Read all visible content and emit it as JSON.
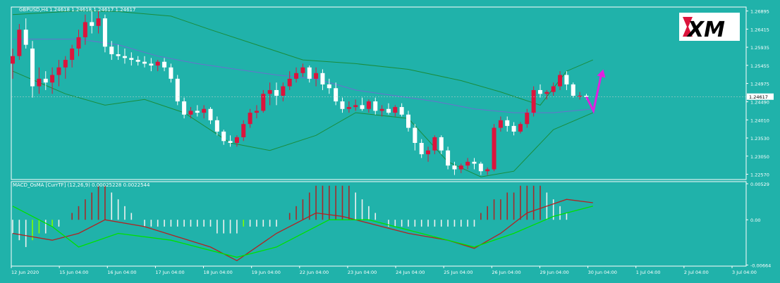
{
  "colors": {
    "background": "#20b2aa",
    "frame": "#ffffff",
    "bull_candle": "#dc143c",
    "bear_candle": "#ffffff",
    "bollinger": "#1a8c3c",
    "ma": "#6a6fcf",
    "hist_pos_up": "#a52a2a",
    "hist_pos_down": "#f0f0f0",
    "hist_neg_up": "#7fff00",
    "hist_neg_down": "#f0f0f0",
    "macd_line": "#b22222",
    "signal_line": "#00e000",
    "arrow": "#e020e0",
    "text": "#ffffff"
  },
  "header": {
    "symbol": "GBPUSD,H4",
    "ohlc": "1.24618 1.24618 1.24617 1.24617",
    "indicator": "MACD_OsMA [CurrTF] (12,26,9) 0.00025228 0.0022544"
  },
  "logo": {
    "text": "XM",
    "icon": "xm-logo"
  },
  "chart_data": [
    {
      "type": "candlestick",
      "symbol": "GBPUSD,H4",
      "price_axis": {
        "ticks": [
          "1.26895",
          "1.26415",
          "1.25935",
          "1.25455",
          "1.24975",
          "1.24490",
          "1.24010",
          "1.23530",
          "1.23050",
          "1.22570"
        ],
        "range": [
          1.2243,
          1.27
        ],
        "current_price": "1.24617"
      },
      "time_axis": [
        "12 Jun 2020",
        "15 Jun 04:00",
        "16 Jun 04:00",
        "17 Jun 04:00",
        "18 Jun 04:00",
        "19 Jun 04:00",
        "22 Jun 04:00",
        "23 Jun 04:00",
        "24 Jun 04:00",
        "25 Jun 04:00",
        "26 Jun 04:00",
        "29 Jun 04:00",
        "30 Jun 04:00",
        "1 Jul 04:00",
        "2 Jul 04:00",
        "3 Jul 04:00"
      ],
      "candles": [
        {
          "o": 1.255,
          "h": 1.259,
          "l": 1.251,
          "c": 1.257
        },
        {
          "o": 1.257,
          "h": 1.2655,
          "l": 1.256,
          "c": 1.264
        },
        {
          "o": 1.264,
          "h": 1.267,
          "l": 1.259,
          "c": 1.26
        },
        {
          "o": 1.259,
          "h": 1.261,
          "l": 1.246,
          "c": 1.249
        },
        {
          "o": 1.249,
          "h": 1.254,
          "l": 1.247,
          "c": 1.251
        },
        {
          "o": 1.251,
          "h": 1.253,
          "l": 1.248,
          "c": 1.25
        },
        {
          "o": 1.25,
          "h": 1.254,
          "l": 1.247,
          "c": 1.252
        },
        {
          "o": 1.252,
          "h": 1.256,
          "l": 1.249,
          "c": 1.254
        },
        {
          "o": 1.254,
          "h": 1.257,
          "l": 1.251,
          "c": 1.256
        },
        {
          "o": 1.256,
          "h": 1.26,
          "l": 1.254,
          "c": 1.259
        },
        {
          "o": 1.259,
          "h": 1.264,
          "l": 1.257,
          "c": 1.262
        },
        {
          "o": 1.262,
          "h": 1.268,
          "l": 1.26,
          "c": 1.266
        },
        {
          "o": 1.266,
          "h": 1.269,
          "l": 1.263,
          "c": 1.265
        },
        {
          "o": 1.265,
          "h": 1.269,
          "l": 1.263,
          "c": 1.267
        },
        {
          "o": 1.267,
          "h": 1.268,
          "l": 1.258,
          "c": 1.2595
        },
        {
          "o": 1.2595,
          "h": 1.261,
          "l": 1.256,
          "c": 1.2575
        },
        {
          "o": 1.2575,
          "h": 1.26,
          "l": 1.256,
          "c": 1.257
        },
        {
          "o": 1.257,
          "h": 1.259,
          "l": 1.255,
          "c": 1.2565
        },
        {
          "o": 1.2565,
          "h": 1.258,
          "l": 1.2545,
          "c": 1.256
        },
        {
          "o": 1.256,
          "h": 1.257,
          "l": 1.2545,
          "c": 1.2555
        },
        {
          "o": 1.2555,
          "h": 1.257,
          "l": 1.254,
          "c": 1.255
        },
        {
          "o": 1.255,
          "h": 1.2565,
          "l": 1.253,
          "c": 1.2545
        },
        {
          "o": 1.2545,
          "h": 1.256,
          "l": 1.253,
          "c": 1.2555
        },
        {
          "o": 1.2555,
          "h": 1.2565,
          "l": 1.253,
          "c": 1.254
        },
        {
          "o": 1.254,
          "h": 1.255,
          "l": 1.25,
          "c": 1.251
        },
        {
          "o": 1.251,
          "h": 1.252,
          "l": 1.244,
          "c": 1.245
        },
        {
          "o": 1.245,
          "h": 1.246,
          "l": 1.2405,
          "c": 1.2415
        },
        {
          "o": 1.2415,
          "h": 1.2435,
          "l": 1.2405,
          "c": 1.2425
        },
        {
          "o": 1.2425,
          "h": 1.244,
          "l": 1.241,
          "c": 1.242
        },
        {
          "o": 1.242,
          "h": 1.244,
          "l": 1.2405,
          "c": 1.243
        },
        {
          "o": 1.243,
          "h": 1.2435,
          "l": 1.239,
          "c": 1.24
        },
        {
          "o": 1.24,
          "h": 1.241,
          "l": 1.236,
          "c": 1.237
        },
        {
          "o": 1.237,
          "h": 1.2375,
          "l": 1.2335,
          "c": 1.2345
        },
        {
          "o": 1.2345,
          "h": 1.236,
          "l": 1.233,
          "c": 1.234
        },
        {
          "o": 1.234,
          "h": 1.236,
          "l": 1.233,
          "c": 1.2355
        },
        {
          "o": 1.2355,
          "h": 1.24,
          "l": 1.2345,
          "c": 1.239
        },
        {
          "o": 1.239,
          "h": 1.243,
          "l": 1.238,
          "c": 1.242
        },
        {
          "o": 1.242,
          "h": 1.244,
          "l": 1.2405,
          "c": 1.2425
        },
        {
          "o": 1.2425,
          "h": 1.248,
          "l": 1.242,
          "c": 1.247
        },
        {
          "o": 1.247,
          "h": 1.25,
          "l": 1.244,
          "c": 1.248
        },
        {
          "o": 1.248,
          "h": 1.25,
          "l": 1.244,
          "c": 1.2465
        },
        {
          "o": 1.2465,
          "h": 1.25,
          "l": 1.245,
          "c": 1.249
        },
        {
          "o": 1.249,
          "h": 1.253,
          "l": 1.248,
          "c": 1.251
        },
        {
          "o": 1.251,
          "h": 1.254,
          "l": 1.25,
          "c": 1.2525
        },
        {
          "o": 1.2525,
          "h": 1.255,
          "l": 1.2515,
          "c": 1.254
        },
        {
          "o": 1.254,
          "h": 1.2545,
          "l": 1.25,
          "c": 1.251
        },
        {
          "o": 1.251,
          "h": 1.254,
          "l": 1.249,
          "c": 1.2525
        },
        {
          "o": 1.2525,
          "h": 1.2535,
          "l": 1.248,
          "c": 1.2495
        },
        {
          "o": 1.2495,
          "h": 1.251,
          "l": 1.247,
          "c": 1.2485
        },
        {
          "o": 1.2485,
          "h": 1.25,
          "l": 1.244,
          "c": 1.245
        },
        {
          "o": 1.245,
          "h": 1.246,
          "l": 1.242,
          "c": 1.243
        },
        {
          "o": 1.243,
          "h": 1.245,
          "l": 1.242,
          "c": 1.2435
        },
        {
          "o": 1.2435,
          "h": 1.2455,
          "l": 1.2425,
          "c": 1.244
        },
        {
          "o": 1.244,
          "h": 1.246,
          "l": 1.2425,
          "c": 1.243
        },
        {
          "o": 1.243,
          "h": 1.2455,
          "l": 1.242,
          "c": 1.245
        },
        {
          "o": 1.245,
          "h": 1.246,
          "l": 1.2415,
          "c": 1.2425
        },
        {
          "o": 1.2425,
          "h": 1.244,
          "l": 1.241,
          "c": 1.243
        },
        {
          "o": 1.243,
          "h": 1.2445,
          "l": 1.2415,
          "c": 1.242
        },
        {
          "o": 1.242,
          "h": 1.244,
          "l": 1.241,
          "c": 1.2435
        },
        {
          "o": 1.2435,
          "h": 1.2445,
          "l": 1.241,
          "c": 1.2415
        },
        {
          "o": 1.2415,
          "h": 1.2425,
          "l": 1.237,
          "c": 1.238
        },
        {
          "o": 1.238,
          "h": 1.239,
          "l": 1.232,
          "c": 1.234
        },
        {
          "o": 1.234,
          "h": 1.235,
          "l": 1.23,
          "c": 1.231
        },
        {
          "o": 1.231,
          "h": 1.233,
          "l": 1.229,
          "c": 1.232
        },
        {
          "o": 1.232,
          "h": 1.236,
          "l": 1.231,
          "c": 1.2355
        },
        {
          "o": 1.2355,
          "h": 1.236,
          "l": 1.231,
          "c": 1.232
        },
        {
          "o": 1.232,
          "h": 1.233,
          "l": 1.227,
          "c": 1.228
        },
        {
          "o": 1.228,
          "h": 1.229,
          "l": 1.2255,
          "c": 1.227
        },
        {
          "o": 1.227,
          "h": 1.2285,
          "l": 1.226,
          "c": 1.228
        },
        {
          "o": 1.228,
          "h": 1.23,
          "l": 1.227,
          "c": 1.229
        },
        {
          "o": 1.229,
          "h": 1.23,
          "l": 1.227,
          "c": 1.2285
        },
        {
          "o": 1.2285,
          "h": 1.229,
          "l": 1.2255,
          "c": 1.2265
        },
        {
          "o": 1.2265,
          "h": 1.2275,
          "l": 1.2255,
          "c": 1.227
        },
        {
          "o": 1.227,
          "h": 1.239,
          "l": 1.2265,
          "c": 1.238
        },
        {
          "o": 1.238,
          "h": 1.241,
          "l": 1.237,
          "c": 1.24
        },
        {
          "o": 1.24,
          "h": 1.241,
          "l": 1.237,
          "c": 1.2385
        },
        {
          "o": 1.2385,
          "h": 1.2395,
          "l": 1.236,
          "c": 1.237
        },
        {
          "o": 1.237,
          "h": 1.2395,
          "l": 1.2365,
          "c": 1.239
        },
        {
          "o": 1.239,
          "h": 1.243,
          "l": 1.238,
          "c": 1.242
        },
        {
          "o": 1.242,
          "h": 1.249,
          "l": 1.241,
          "c": 1.248
        },
        {
          "o": 1.248,
          "h": 1.2495,
          "l": 1.246,
          "c": 1.247
        },
        {
          "o": 1.247,
          "h": 1.248,
          "l": 1.2455,
          "c": 1.2475
        },
        {
          "o": 1.2475,
          "h": 1.25,
          "l": 1.2465,
          "c": 1.249
        },
        {
          "o": 1.249,
          "h": 1.253,
          "l": 1.248,
          "c": 1.252
        },
        {
          "o": 1.252,
          "h": 1.253,
          "l": 1.248,
          "c": 1.2495
        },
        {
          "o": 1.2495,
          "h": 1.25,
          "l": 1.246,
          "c": 1.2465
        },
        {
          "o": 1.2465,
          "h": 1.2475,
          "l": 1.2455,
          "c": 1.2465
        },
        {
          "o": 1.2465,
          "h": 1.247,
          "l": 1.2455,
          "c": 1.2462
        }
      ],
      "bollinger_upper": [
        [
          0,
          1.268
        ],
        [
          10,
          1.269
        ],
        [
          16,
          1.2688
        ],
        [
          24,
          1.2676
        ],
        [
          30,
          1.264
        ],
        [
          37,
          1.26
        ],
        [
          44,
          1.256
        ],
        [
          52,
          1.255
        ],
        [
          60,
          1.2535
        ],
        [
          68,
          1.2505
        ],
        [
          74,
          1.2475
        ],
        [
          80,
          1.244
        ],
        [
          84,
          1.253
        ],
        [
          88,
          1.256
        ]
      ],
      "bollinger_lower": [
        [
          0,
          1.253
        ],
        [
          8,
          1.247
        ],
        [
          14,
          1.244
        ],
        [
          20,
          1.2455
        ],
        [
          26,
          1.242
        ],
        [
          33,
          1.234
        ],
        [
          39,
          1.232
        ],
        [
          46,
          1.236
        ],
        [
          52,
          1.242
        ],
        [
          60,
          1.2405
        ],
        [
          66,
          1.229
        ],
        [
          71,
          1.225
        ],
        [
          76,
          1.2265
        ],
        [
          82,
          1.2375
        ],
        [
          88,
          1.242
        ]
      ],
      "ma": [
        [
          0,
          1.2615
        ],
        [
          10,
          1.2615
        ],
        [
          16,
          1.26
        ],
        [
          22,
          1.257
        ],
        [
          28,
          1.255
        ],
        [
          34,
          1.2535
        ],
        [
          40,
          1.252
        ],
        [
          46,
          1.251
        ],
        [
          52,
          1.248
        ],
        [
          58,
          1.2465
        ],
        [
          64,
          1.245
        ],
        [
          70,
          1.243
        ],
        [
          76,
          1.242
        ],
        [
          82,
          1.242
        ],
        [
          88,
          1.243
        ]
      ],
      "annotation": "projection-arrow-up"
    },
    {
      "type": "histogram+lines",
      "title": "MACD_OsMA [CurrTF] (12,26,9) 0.00025228 0.0022544",
      "value_axis": {
        "ticks": [
          "0.00529",
          "0.00",
          "-0.00664"
        ],
        "range": [
          -0.0068,
          0.0056
        ]
      },
      "histogram": [
        -0.002,
        -0.003,
        -0.004,
        -0.003,
        -0.002,
        -0.002,
        -0.001,
        -0.001,
        0.0,
        0.001,
        0.002,
        0.003,
        0.004,
        0.005,
        0.005,
        0.004,
        0.003,
        0.002,
        0.001,
        0.0,
        -0.001,
        -0.001,
        -0.001,
        -0.001,
        -0.001,
        -0.001,
        -0.001,
        -0.001,
        -0.001,
        -0.001,
        -0.001,
        -0.002,
        -0.002,
        -0.002,
        -0.002,
        -0.001,
        -0.001,
        -0.001,
        -0.001,
        -0.001,
        -0.001,
        0.0,
        0.001,
        0.002,
        0.003,
        0.004,
        0.005,
        0.005,
        0.005,
        0.005,
        0.005,
        0.005,
        0.004,
        0.003,
        0.002,
        0.001,
        0.0,
        -0.001,
        -0.001,
        -0.001,
        -0.001,
        -0.001,
        -0.001,
        -0.001,
        -0.001,
        -0.001,
        -0.001,
        -0.001,
        -0.001,
        -0.001,
        -0.001,
        0.001,
        0.002,
        0.003,
        0.003,
        0.004,
        0.004,
        0.005,
        0.005,
        0.005,
        0.005,
        0.004,
        0.003,
        0.002,
        0.001
      ],
      "macd": [
        [
          0,
          -0.002
        ],
        [
          6,
          -0.003
        ],
        [
          10,
          -0.002
        ],
        [
          14,
          0.0
        ],
        [
          20,
          -0.001
        ],
        [
          30,
          -0.004
        ],
        [
          34,
          -0.006
        ],
        [
          40,
          -0.002
        ],
        [
          46,
          0.001
        ],
        [
          50,
          0.0005
        ],
        [
          60,
          -0.002
        ],
        [
          66,
          -0.003
        ],
        [
          70,
          -0.0042
        ],
        [
          74,
          -0.002
        ],
        [
          78,
          0.001
        ],
        [
          84,
          0.003
        ],
        [
          88,
          0.0025
        ]
      ],
      "signal": [
        [
          0,
          0.002
        ],
        [
          6,
          -0.001
        ],
        [
          10,
          -0.004
        ],
        [
          16,
          -0.002
        ],
        [
          24,
          -0.003
        ],
        [
          34,
          -0.0055
        ],
        [
          40,
          -0.004
        ],
        [
          48,
          0.0
        ],
        [
          54,
          0.0
        ],
        [
          60,
          -0.0015
        ],
        [
          66,
          -0.003
        ],
        [
          70,
          -0.004
        ],
        [
          76,
          -0.002
        ],
        [
          82,
          0.0005
        ],
        [
          88,
          0.002
        ]
      ]
    }
  ]
}
